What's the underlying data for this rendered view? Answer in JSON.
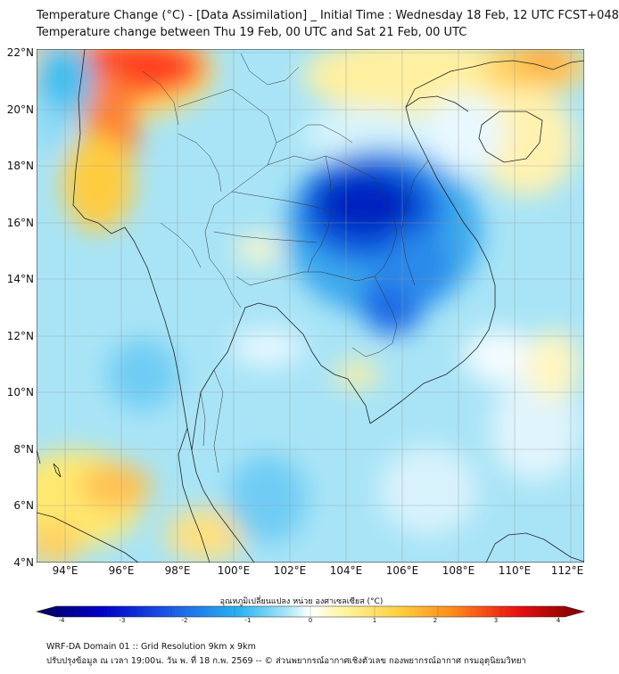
{
  "title_line1": "Temperature Change (°C) - [Data Assimilation] _ Initial Time : Wednesday 18 Feb, 12 UTC FCST+048",
  "title_line2": "Temperature change between Thu 19 Feb, 00 UTC and Sat 21 Feb, 00 UTC",
  "lat_labels": [
    "22°N",
    "20°N",
    "18°N",
    "16°N",
    "14°N",
    "12°N",
    "10°N",
    "8°N",
    "6°N",
    "4°N"
  ],
  "lon_labels": [
    "94°E",
    "96°E",
    "98°E",
    "100°E",
    "102°E",
    "104°E",
    "106°E",
    "108°E",
    "110°E",
    "112°E"
  ],
  "colorbar": {
    "label": "อุณหภูมิเปลี่ยนแปลง หน่วย องศาเซลเซียส (°C)",
    "ticks": [
      "-4",
      "-3",
      "-2",
      "-1",
      "0",
      "1",
      "2",
      "3",
      "4"
    ],
    "range": [
      -4,
      4
    ],
    "colors": [
      "#00005a",
      "#0000c8",
      "#1e5fe6",
      "#28b4f0",
      "#aee8f8",
      "#ffffff",
      "#fff5a0",
      "#ffd040",
      "#ff8a1a",
      "#e81010",
      "#7a0000"
    ]
  },
  "footer_line1": "WRF-DA Domain 01 :: Grid Resolution 9km x 9km",
  "footer_line2": "ปรับปรุงข้อมูล ณ เวลา 19:00น. วัน พ. ที่ 18 ก.พ. 2569 -- © ส่วนพยากรณ์อากาศเชิงตัวเลข กองพยากรณ์อากาศ กรมอุตุนิยมวิทยา"
}
